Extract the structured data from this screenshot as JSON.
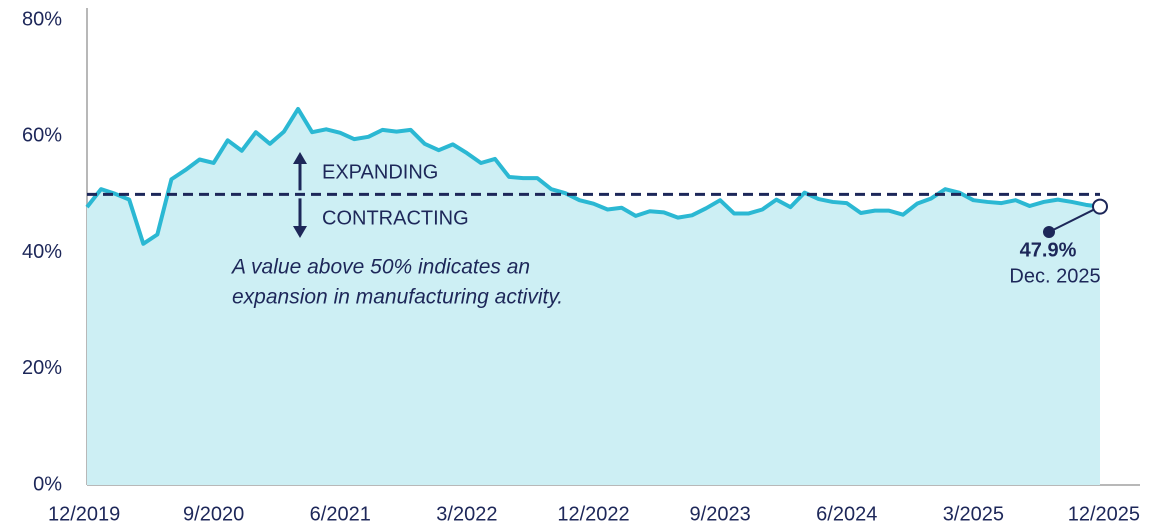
{
  "chart_data": {
    "type": "area",
    "categories": [
      "12/2019",
      null,
      null,
      null,
      null,
      null,
      null,
      null,
      null,
      "9/2020",
      null,
      null,
      null,
      null,
      null,
      null,
      null,
      null,
      "6/2021",
      null,
      null,
      null,
      null,
      null,
      null,
      null,
      null,
      "3/2022",
      null,
      null,
      null,
      null,
      null,
      null,
      null,
      null,
      "12/2022",
      null,
      null,
      null,
      null,
      null,
      null,
      null,
      null,
      "9/2023",
      null,
      null,
      null,
      null,
      null,
      null,
      null,
      null,
      "6/2024",
      null,
      null,
      null,
      null,
      null,
      null,
      null,
      null,
      "3/2025",
      null,
      null,
      null,
      null,
      null,
      null,
      null,
      null,
      "12/2025"
    ],
    "values": [
      47.8,
      50.9,
      50.1,
      49.1,
      41.5,
      43.1,
      52.6,
      54.2,
      56.0,
      55.4,
      59.3,
      57.5,
      60.7,
      58.7,
      60.8,
      64.7,
      60.7,
      61.2,
      60.6,
      59.5,
      59.9,
      61.1,
      60.8,
      61.1,
      58.7,
      57.6,
      58.6,
      57.1,
      55.4,
      56.1,
      53.0,
      52.8,
      52.8,
      50.9,
      50.2,
      49.0,
      48.4,
      47.4,
      47.7,
      46.3,
      47.1,
      46.9,
      46.0,
      46.4,
      47.6,
      49.0,
      46.7,
      46.7,
      47.4,
      49.1,
      47.8,
      50.3,
      49.2,
      48.7,
      48.5,
      46.8,
      47.2,
      47.2,
      46.5,
      48.4,
      49.3,
      50.9,
      50.3,
      49.0,
      48.7,
      48.5,
      49.0,
      48.0,
      48.7,
      49.1,
      48.7,
      48.2,
      47.9
    ],
    "value_labels": [
      null,
      null,
      null,
      null,
      null,
      null,
      null,
      null,
      null,
      null,
      null,
      null,
      null,
      null,
      null,
      null,
      null,
      null,
      null,
      null,
      null,
      null,
      null,
      null,
      null,
      null,
      null,
      null,
      null,
      null,
      null,
      null,
      null,
      null,
      null,
      null,
      null,
      null,
      null,
      null,
      null,
      null,
      null,
      null,
      null,
      null,
      null,
      null,
      null,
      null,
      null,
      null,
      null,
      null,
      null,
      null,
      null,
      null,
      null,
      null,
      null,
      null,
      null,
      null,
      null,
      null,
      null,
      null,
      null,
      null,
      null,
      null,
      "47.9%"
    ],
    "line_color": "#2bb8d3",
    "fill_color": "#cdeff4",
    "ylim": [
      0,
      80
    ],
    "yticks": [
      {
        "value": 0,
        "label": "0%"
      },
      {
        "value": 20,
        "label": "20%"
      },
      {
        "value": 40,
        "label": "40%"
      },
      {
        "value": 60,
        "label": "60%"
      },
      {
        "value": 80,
        "label": "80%"
      }
    ],
    "reference_line": 50,
    "annotations": {
      "expanding": "EXPANDING",
      "contracting": "CONTRACTING",
      "note": [
        "A value above 50% indicates an",
        "expansion in manufacturing activity."
      ],
      "last_date": "Dec. 2025"
    }
  }
}
